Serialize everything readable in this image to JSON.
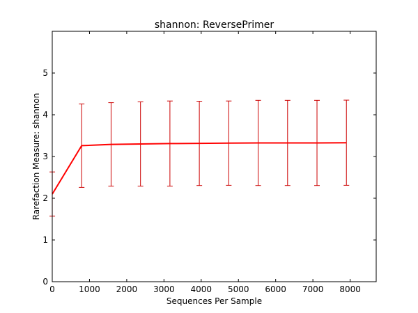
{
  "chart_data": {
    "type": "line",
    "title": "shannon: ReversePrimer",
    "xlabel": "Sequences Per Sample",
    "ylabel": "Rarefaction Measure: shannon",
    "xlim": [
      0,
      8700
    ],
    "ylim": [
      0,
      6
    ],
    "xticks": [
      0,
      1000,
      2000,
      3000,
      4000,
      5000,
      6000,
      7000,
      8000
    ],
    "yticks": [
      0,
      1,
      2,
      3,
      4,
      5
    ],
    "grid": false,
    "legend": "none",
    "line_color": "#ff0000",
    "errorbar_color": "#cc0000",
    "series": [
      {
        "x": [
          1,
          790,
          1580,
          2370,
          3160,
          3950,
          4740,
          5530,
          6320,
          7110,
          7900
        ],
        "y": [
          2.1,
          3.26,
          3.29,
          3.3,
          3.31,
          3.315,
          3.32,
          3.325,
          3.325,
          3.325,
          3.33
        ],
        "yerr": [
          0.53,
          1.0,
          1.0,
          1.01,
          1.02,
          1.01,
          1.01,
          1.02,
          1.02,
          1.02,
          1.02
        ]
      }
    ]
  }
}
